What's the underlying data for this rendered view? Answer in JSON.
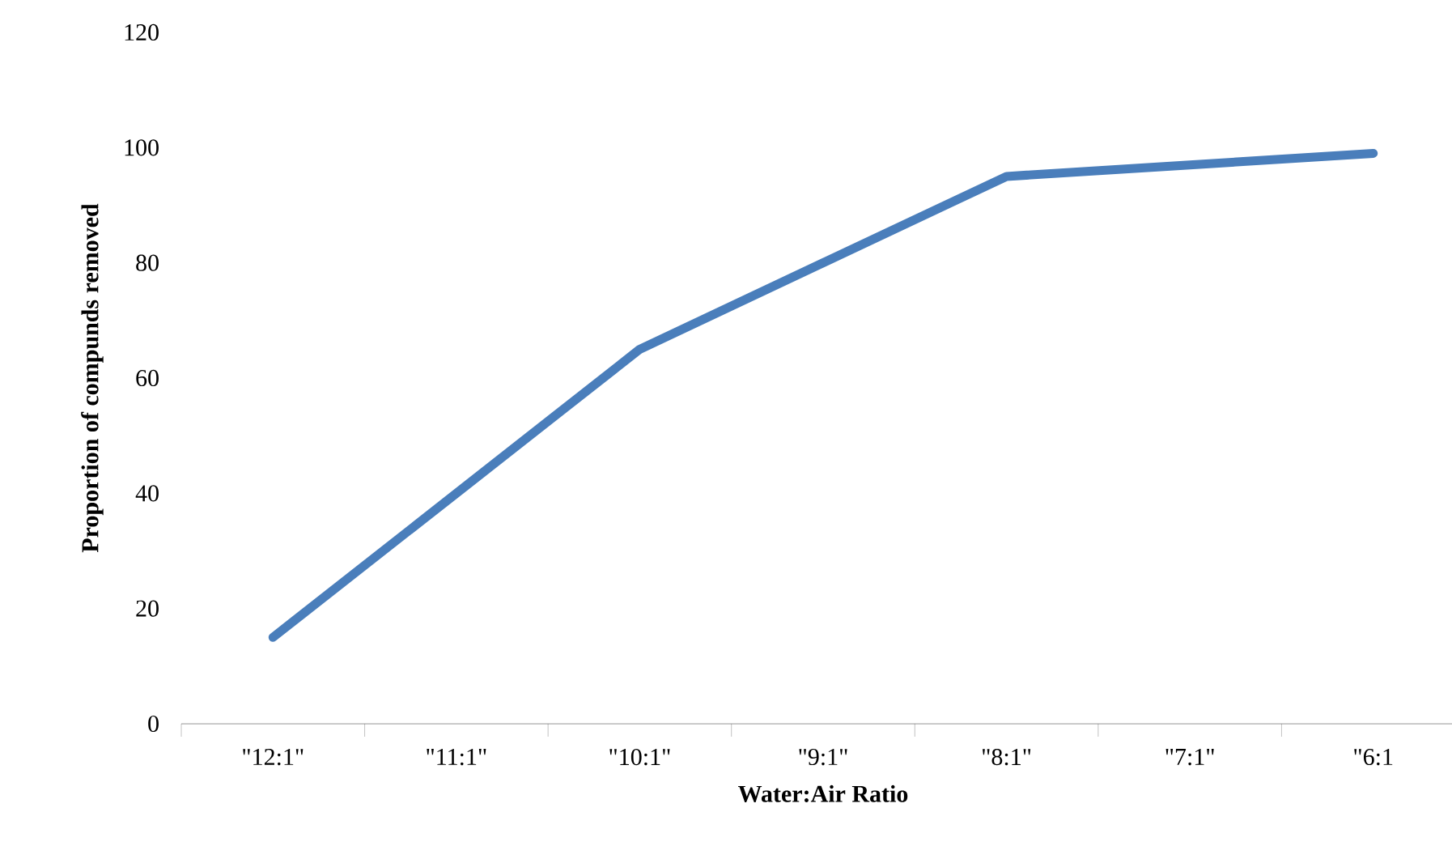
{
  "chart_data": {
    "type": "line",
    "xlabel": "Water:Air Ratio",
    "ylabel": "Proportion of compunds removed",
    "categories": [
      "\"12:1\"",
      "\"11:1\"",
      "\"10:1\"",
      "\"9:1\"",
      "\"8:1\"",
      "\"7:1\"",
      "\"6:1"
    ],
    "series": [
      {
        "color": "#4a7ebb",
        "values": [
          15,
          40,
          65,
          80,
          95,
          97,
          99
        ]
      }
    ],
    "ylim": [
      0,
      120
    ],
    "yticks": [
      0,
      20,
      40,
      60,
      80,
      100,
      120
    ],
    "marker": "none",
    "line_style": "solid"
  }
}
